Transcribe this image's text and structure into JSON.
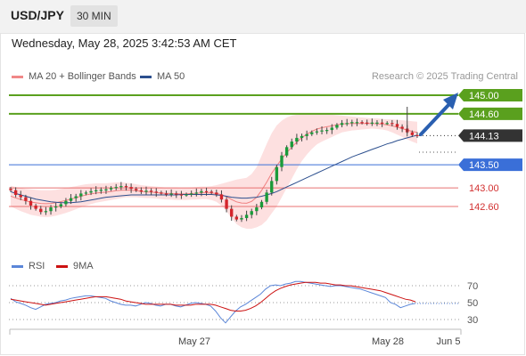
{
  "header": {
    "pair": "USD/JPY",
    "timeframe": "30 MIN"
  },
  "datetime": "Wednesday, May 28, 2025 3:42:53 AM CET",
  "source": "Research © 2025 Trading Central",
  "colors": {
    "resistance": "#5aa01e",
    "support": "#3a6fd8",
    "pivot_line": "#e87070",
    "current": "#333333",
    "bollinger_fill": "#fde0e0",
    "ma20": "#f08080",
    "ma50": "#2c4f8e",
    "rsi": "#5b86d8",
    "rsi_ma": "#cc1111",
    "arrow": "#2a5fb0"
  },
  "legend_top": [
    {
      "label": "MA 20 + Bollinger Bands",
      "color": "#f08888",
      "icon": "legend-swatch"
    },
    {
      "label": "MA 50",
      "color": "#2c4f8e",
      "icon": "legend-swatch"
    }
  ],
  "legend_bottom": [
    {
      "label": "RSI",
      "color": "#5b86d8",
      "icon": "legend-swatch"
    },
    {
      "label": "9MA",
      "color": "#cc1111",
      "icon": "legend-swatch"
    }
  ],
  "chart_data": [
    {
      "type": "candlestick",
      "title": "USD/JPY 30 MIN",
      "ylim": [
        142.2,
        145.2
      ],
      "levels": [
        {
          "label": "145.00",
          "value": 145.0,
          "kind": "resistance"
        },
        {
          "label": "144.60",
          "value": 144.6,
          "kind": "resistance"
        },
        {
          "label": "144.13",
          "value": 144.13,
          "kind": "current"
        },
        {
          "label": "143.50",
          "value": 143.5,
          "kind": "support"
        },
        {
          "label": "143.00",
          "value": 143.0,
          "kind": "pivot"
        },
        {
          "label": "142.60",
          "value": 142.6,
          "kind": "pivot"
        }
      ],
      "close_series": [
        142.95,
        142.85,
        142.8,
        142.72,
        142.62,
        142.55,
        142.48,
        142.5,
        142.58,
        142.6,
        142.65,
        142.72,
        142.78,
        142.82,
        142.88,
        142.9,
        142.93,
        142.95,
        142.96,
        142.97,
        143.0,
        143.02,
        143.04,
        143.02,
        142.98,
        142.95,
        142.92,
        142.94,
        142.92,
        142.9,
        142.88,
        142.87,
        142.88,
        142.86,
        142.85,
        142.86,
        142.88,
        142.9,
        142.93,
        142.92,
        142.9,
        142.86,
        142.75,
        142.55,
        142.38,
        142.32,
        142.35,
        142.42,
        142.5,
        142.58,
        142.7,
        142.9,
        143.15,
        143.45,
        143.7,
        143.88,
        144.0,
        144.08,
        144.12,
        144.16,
        144.2,
        144.22,
        144.24,
        144.25,
        144.3,
        144.36,
        144.4,
        144.4,
        144.42,
        144.42,
        144.41,
        144.4,
        144.41,
        144.41,
        144.4,
        144.4,
        144.38,
        144.32,
        144.28,
        144.2,
        144.14,
        144.13
      ],
      "ma50": [
        142.92,
        142.88,
        142.85,
        142.82,
        142.79,
        142.76,
        142.74,
        142.72,
        142.7,
        142.69,
        142.68,
        142.68,
        142.68,
        142.69,
        142.7,
        142.72,
        142.74,
        142.76,
        142.78,
        142.8,
        142.81,
        142.82,
        142.83,
        142.84,
        142.85,
        142.85,
        142.85,
        142.85,
        142.85,
        142.85,
        142.85,
        142.85,
        142.85,
        142.85,
        142.86,
        142.86,
        142.86,
        142.86,
        142.86,
        142.86,
        142.86,
        142.85,
        142.84,
        142.82,
        142.8,
        142.79,
        142.78,
        142.78,
        142.79,
        142.8,
        142.82,
        142.85,
        142.88,
        142.92,
        142.97,
        143.02,
        143.07,
        143.12,
        143.17,
        143.22,
        143.27,
        143.32,
        143.37,
        143.42,
        143.47,
        143.52,
        143.57,
        143.62,
        143.67,
        143.71,
        143.75,
        143.79,
        143.83,
        143.87,
        143.91,
        143.95,
        143.98,
        144.02,
        144.05,
        144.08,
        144.11,
        144.14
      ],
      "bb_upper": [
        143.05,
        143.02,
        143.0,
        142.98,
        142.97,
        142.96,
        142.95,
        142.95,
        142.95,
        142.96,
        142.98,
        143.0,
        143.02,
        143.04,
        143.06,
        143.08,
        143.09,
        143.1,
        143.1,
        143.1,
        143.11,
        143.12,
        143.12,
        143.11,
        143.1,
        143.08,
        143.06,
        143.05,
        143.04,
        143.03,
        143.02,
        143.01,
        143.01,
        143.01,
        143.0,
        143.0,
        143.01,
        143.02,
        143.03,
        143.03,
        143.04,
        143.06,
        143.09,
        143.12,
        143.15,
        143.18,
        143.2,
        143.22,
        143.3,
        143.45,
        143.7,
        143.95,
        144.18,
        144.35,
        144.45,
        144.52,
        144.56,
        144.58,
        144.59,
        144.6,
        144.6,
        144.6,
        144.6,
        144.59,
        144.58,
        144.57,
        144.56,
        144.55,
        144.54,
        144.53,
        144.52,
        144.51,
        144.5,
        144.5,
        144.49,
        144.48,
        144.48,
        144.47,
        144.46,
        144.45,
        144.44,
        144.43
      ],
      "bb_lower": [
        142.6,
        142.55,
        142.5,
        142.46,
        142.42,
        142.4,
        142.38,
        142.37,
        142.38,
        142.4,
        142.43,
        142.46,
        142.5,
        142.54,
        142.58,
        142.62,
        142.65,
        142.68,
        142.7,
        142.72,
        142.74,
        142.76,
        142.78,
        142.8,
        142.8,
        142.8,
        142.79,
        142.78,
        142.78,
        142.77,
        142.76,
        142.75,
        142.75,
        142.74,
        142.74,
        142.74,
        142.75,
        142.75,
        142.76,
        142.76,
        142.74,
        142.7,
        142.62,
        142.5,
        142.35,
        142.22,
        142.15,
        142.12,
        142.12,
        142.15,
        142.2,
        142.3,
        142.45,
        142.6,
        142.8,
        143.0,
        143.2,
        143.4,
        143.58,
        143.72,
        143.84,
        143.94,
        144.0,
        144.05,
        144.1,
        144.15,
        144.2,
        144.22,
        144.24,
        144.25,
        144.26,
        144.27,
        144.28,
        144.27,
        144.26,
        144.24,
        144.2,
        144.15,
        144.1,
        144.05,
        144.0,
        143.96
      ],
      "x_ticks": [
        "May 27",
        "May 28",
        "Jun 5"
      ]
    },
    {
      "type": "line",
      "title": "RSI",
      "ylim": [
        20,
        80
      ],
      "y_ticks": [
        70,
        50,
        30
      ],
      "series": [
        {
          "name": "RSI",
          "values": [
            55,
            51,
            49,
            47,
            44,
            42,
            45,
            48,
            49,
            50,
            52,
            53,
            55,
            56,
            57,
            58,
            58,
            57,
            56,
            55,
            52,
            50,
            48,
            47,
            47,
            46,
            48,
            50,
            49,
            47,
            46,
            48,
            48,
            46,
            45,
            47,
            49,
            50,
            49,
            48,
            46,
            40,
            32,
            26,
            33,
            40,
            45,
            48,
            52,
            56,
            60,
            66,
            70,
            71,
            70,
            72,
            73,
            75,
            75,
            74,
            73,
            72,
            71,
            70,
            69,
            70,
            70,
            69,
            68,
            67,
            66,
            64,
            62,
            60,
            58,
            56,
            50,
            48,
            44,
            46,
            48,
            49
          ]
        },
        {
          "name": "9MA",
          "values": [
            54,
            53,
            52,
            51,
            50,
            49,
            48,
            47,
            48,
            49,
            50,
            51,
            52,
            53,
            54,
            55,
            56,
            57,
            57,
            57,
            56,
            55,
            54,
            52,
            51,
            50,
            49,
            48,
            48,
            48,
            48,
            48,
            48,
            47,
            47,
            47,
            47,
            48,
            48,
            48,
            48,
            47,
            45,
            43,
            41,
            40,
            40,
            41,
            43,
            46,
            50,
            55,
            60,
            64,
            67,
            69,
            71,
            72,
            73,
            74,
            74,
            74,
            73,
            73,
            72,
            71,
            71,
            70,
            70,
            69,
            68,
            67,
            66,
            65,
            64,
            62,
            60,
            58,
            56,
            54,
            53,
            51
          ]
        }
      ],
      "x_ticks": [
        "May 27",
        "May 28",
        "Jun 5"
      ]
    }
  ]
}
